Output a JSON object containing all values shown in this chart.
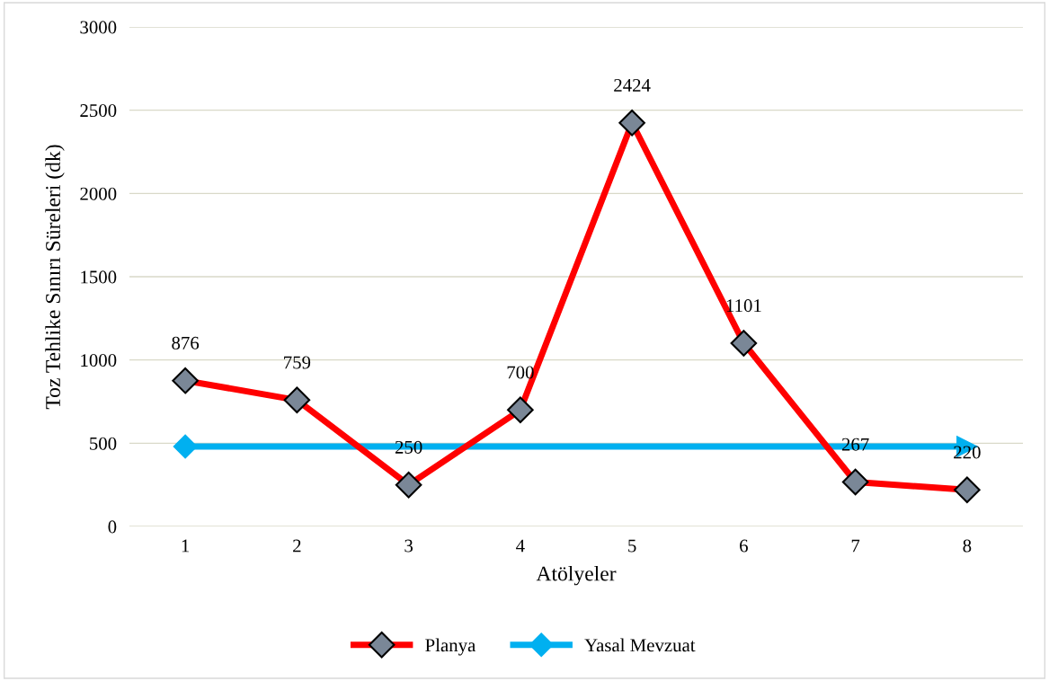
{
  "chart_data": {
    "type": "line",
    "xlabel": "Atölyeler",
    "ylabel": "Toz Tehlike Sınırı Süreleri (dk)",
    "categories": [
      "1",
      "2",
      "3",
      "4",
      "5",
      "6",
      "7",
      "8"
    ],
    "series": [
      {
        "name": "Planya",
        "color": "#ff0000",
        "values": [
          876,
          759,
          250,
          700,
          2424,
          1101,
          267,
          220
        ],
        "marker": "diamond",
        "data_labels": true
      }
    ],
    "ref_lines": [
      {
        "axis": "y",
        "value": 480,
        "label": "Yasal Mevzuat",
        "color": "#00b0f0"
      }
    ],
    "ylim": [
      0,
      3000
    ],
    "yticks": [
      0,
      500,
      1000,
      1500,
      2000,
      2500,
      3000
    ],
    "grid": "y",
    "legend": "bottom"
  }
}
